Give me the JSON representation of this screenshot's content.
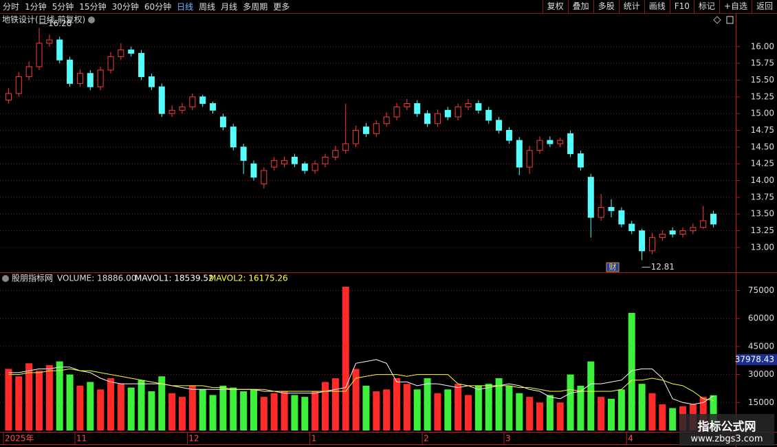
{
  "toolbar": {
    "left": [
      "分时",
      "1分钟",
      "5分钟",
      "15分钟",
      "30分钟",
      "60分钟",
      "日线",
      "周线",
      "月线",
      "多周期",
      "更多"
    ],
    "active": "日线",
    "right": [
      "复权",
      "叠加",
      "多股",
      "统计",
      "画线",
      "F10",
      "标记",
      "+自选",
      "返回"
    ]
  },
  "chart_data": [
    {
      "type": "candlestick",
      "title": "地铁设计(日线,前复权)",
      "event_marker": "财",
      "event_index": 59,
      "up_color": "#ff3c3c",
      "down_color": "#54fcfc",
      "open": [
        15.2,
        15.3,
        15.55,
        15.7,
        16.05,
        16.1,
        15.8,
        15.45,
        15.6,
        15.4,
        15.65,
        15.85,
        15.95,
        15.9,
        15.55,
        15.4,
        15.0,
        15.05,
        15.1,
        15.25,
        15.15,
        14.95,
        14.8,
        14.5,
        14.25,
        13.95,
        14.2,
        14.25,
        14.35,
        14.25,
        14.15,
        14.25,
        14.35,
        14.45,
        14.55,
        14.8,
        14.7,
        14.85,
        14.95,
        15.1,
        15.15,
        15.0,
        14.85,
        15.05,
        14.95,
        15.1,
        15.15,
        15.05,
        14.9,
        14.75,
        14.6,
        14.2,
        14.45,
        14.6,
        14.55,
        14.7,
        14.4,
        14.05,
        13.45,
        13.6,
        13.55,
        13.35,
        13.25,
        12.95,
        13.15,
        13.25,
        13.2,
        13.25,
        13.3,
        13.5
      ],
      "high": [
        15.38,
        15.62,
        15.78,
        16.28,
        16.18,
        16.15,
        15.85,
        15.66,
        15.65,
        15.7,
        15.92,
        16.05,
        16.0,
        15.95,
        15.6,
        15.45,
        15.12,
        15.16,
        15.3,
        15.28,
        15.18,
        15.0,
        14.85,
        14.55,
        14.3,
        14.2,
        14.35,
        14.36,
        14.4,
        14.28,
        14.3,
        14.4,
        14.52,
        15.15,
        14.82,
        14.86,
        14.9,
        15.02,
        15.16,
        15.22,
        15.2,
        15.05,
        15.06,
        15.1,
        15.15,
        15.22,
        15.2,
        15.1,
        14.95,
        14.8,
        14.65,
        14.52,
        14.66,
        14.66,
        14.64,
        14.75,
        14.45,
        14.1,
        13.8,
        13.72,
        13.6,
        13.4,
        13.28,
        13.22,
        13.26,
        13.3,
        13.3,
        13.36,
        13.62,
        13.55
      ],
      "low": [
        15.15,
        15.25,
        15.5,
        15.65,
        16.0,
        15.75,
        15.4,
        15.4,
        15.35,
        15.35,
        15.6,
        15.8,
        15.85,
        15.5,
        15.35,
        14.95,
        14.95,
        15.0,
        15.05,
        15.1,
        15.0,
        14.75,
        14.45,
        14.1,
        14.0,
        13.88,
        14.15,
        14.2,
        14.2,
        14.1,
        14.1,
        14.2,
        14.3,
        14.4,
        14.5,
        14.65,
        14.65,
        14.8,
        14.9,
        15.05,
        14.95,
        14.8,
        14.8,
        14.9,
        14.9,
        15.05,
        15.0,
        14.85,
        14.7,
        14.55,
        14.08,
        14.1,
        14.4,
        14.5,
        14.5,
        14.35,
        14.15,
        13.15,
        13.4,
        13.45,
        13.3,
        13.2,
        12.81,
        12.9,
        13.1,
        13.15,
        13.15,
        13.2,
        13.28,
        13.3
      ],
      "close": [
        15.3,
        15.55,
        15.7,
        16.05,
        16.1,
        15.8,
        15.45,
        15.6,
        15.4,
        15.65,
        15.85,
        15.95,
        15.9,
        15.55,
        15.4,
        15.0,
        15.05,
        15.1,
        15.25,
        15.15,
        15.05,
        14.8,
        14.5,
        14.3,
        14.05,
        14.15,
        14.3,
        14.3,
        14.25,
        14.15,
        14.25,
        14.35,
        14.45,
        14.55,
        14.75,
        14.7,
        14.85,
        14.95,
        15.1,
        15.15,
        15.0,
        14.85,
        15.0,
        14.95,
        15.1,
        15.15,
        15.05,
        14.9,
        14.75,
        14.6,
        14.2,
        14.45,
        14.6,
        14.55,
        14.6,
        14.4,
        14.2,
        13.45,
        13.6,
        13.55,
        13.35,
        13.25,
        12.95,
        13.15,
        13.2,
        13.2,
        13.25,
        13.3,
        13.4,
        13.35
      ],
      "ylim": [
        12.64,
        16.47
      ],
      "yticks": [
        {
          "value": 13,
          "label": "13.00"
        },
        {
          "value": 13.25,
          "label": "13.25"
        },
        {
          "value": 13.5,
          "label": "13.50"
        },
        {
          "value": 13.75,
          "label": "13.75"
        },
        {
          "value": 14,
          "label": "14.00"
        },
        {
          "value": 14.25,
          "label": "14.25"
        },
        {
          "value": 14.5,
          "label": "14.50"
        },
        {
          "value": 14.75,
          "label": "14.75"
        },
        {
          "value": 15,
          "label": "15.00"
        },
        {
          "value": 15.25,
          "label": "15.25"
        },
        {
          "value": 15.5,
          "label": "15.50"
        },
        {
          "value": 15.75,
          "label": "15.75"
        },
        {
          "value": 16,
          "label": "16.00"
        }
      ],
      "grid": true
    },
    {
      "type": "bar",
      "title": "股朋指标网",
      "legend": [
        "VOLUME: 18886.00",
        "MAVOL1: 18539.52",
        "MAVOL2: 16175.26"
      ],
      "up_color": "#ff2a2a",
      "down_color": "#3cf03c",
      "categories": [
        "2025年",
        null,
        null,
        null,
        null,
        null,
        null,
        "11",
        null,
        null,
        null,
        null,
        null,
        null,
        null,
        null,
        null,
        null,
        "12",
        null,
        null,
        null,
        null,
        null,
        null,
        null,
        null,
        null,
        null,
        null,
        "1",
        null,
        null,
        null,
        null,
        null,
        null,
        null,
        null,
        null,
        null,
        "2",
        null,
        null,
        null,
        null,
        null,
        null,
        null,
        "3",
        null,
        null,
        null,
        null,
        null,
        null,
        null,
        null,
        null,
        null,
        null,
        "4",
        null,
        null,
        null,
        null,
        null,
        null,
        null,
        null
      ],
      "values": [
        33000,
        29000,
        36000,
        32000,
        35000,
        37000,
        30000,
        24000,
        26000,
        22000,
        28000,
        25000,
        23000,
        27000,
        21000,
        29000,
        20000,
        18000,
        24000,
        22000,
        19000,
        24000,
        23000,
        21000,
        22000,
        18000,
        20000,
        21000,
        19000,
        18000,
        21000,
        26000,
        28000,
        77000,
        33000,
        24000,
        21000,
        22000,
        28000,
        25000,
        22000,
        28000,
        20000,
        22000,
        25000,
        19000,
        24000,
        25000,
        28000,
        24000,
        20000,
        18000,
        15000,
        19000,
        15000,
        30000,
        24000,
        37000,
        18000,
        17000,
        22000,
        63000,
        25000,
        20000,
        14000,
        12000,
        13000,
        14000,
        18000,
        18886
      ],
      "lines": [
        {
          "color": "#ffffff",
          "values": [
            31000,
            31000,
            32000,
            33000,
            33000,
            34000,
            34000,
            32000,
            31000,
            28000,
            26000,
            25000,
            25000,
            25000,
            25000,
            25000,
            24000,
            23000,
            22000,
            22000,
            22000,
            22000,
            22000,
            22000,
            22000,
            21000,
            21000,
            20000,
            20000,
            20000,
            20000,
            21000,
            22000,
            23000,
            36000,
            37000,
            38000,
            36000,
            26000,
            26000,
            24000,
            25000,
            25000,
            24000,
            23000,
            24000,
            22000,
            23000,
            24000,
            25000,
            24000,
            22000,
            21000,
            18000,
            17000,
            20000,
            21000,
            25000,
            25000,
            26000,
            27000,
            32000,
            33000,
            33000,
            28000,
            17000,
            15000,
            14000,
            15000,
            18539.52
          ]
        },
        {
          "color": "#ffff3c",
          "values": [
            30000,
            30000,
            31000,
            31000,
            32000,
            32000,
            33000,
            32000,
            32000,
            31000,
            30000,
            29000,
            28000,
            27000,
            26000,
            25000,
            24000,
            24000,
            24000,
            24000,
            23000,
            23000,
            22000,
            22000,
            22000,
            22000,
            21000,
            21000,
            21000,
            21000,
            21000,
            21000,
            21000,
            21000,
            28000,
            29000,
            30000,
            30000,
            30000,
            29000,
            30000,
            30000,
            30000,
            30000,
            25000,
            24000,
            24000,
            24000,
            24000,
            24000,
            23000,
            23000,
            22000,
            21000,
            21000,
            22000,
            21000,
            21000,
            21000,
            21000,
            22000,
            27000,
            27000,
            28000,
            27000,
            25000,
            24000,
            21000,
            17000,
            16175.26
          ]
        }
      ],
      "cursor_value": 37978.43,
      "ylim": [
        0,
        84000
      ],
      "yticks": [
        15000,
        30000,
        45000,
        60000,
        75000
      ],
      "grid": true
    }
  ],
  "watermark": {
    "title": "指标公式网",
    "url": "www.zbgs3.com"
  }
}
